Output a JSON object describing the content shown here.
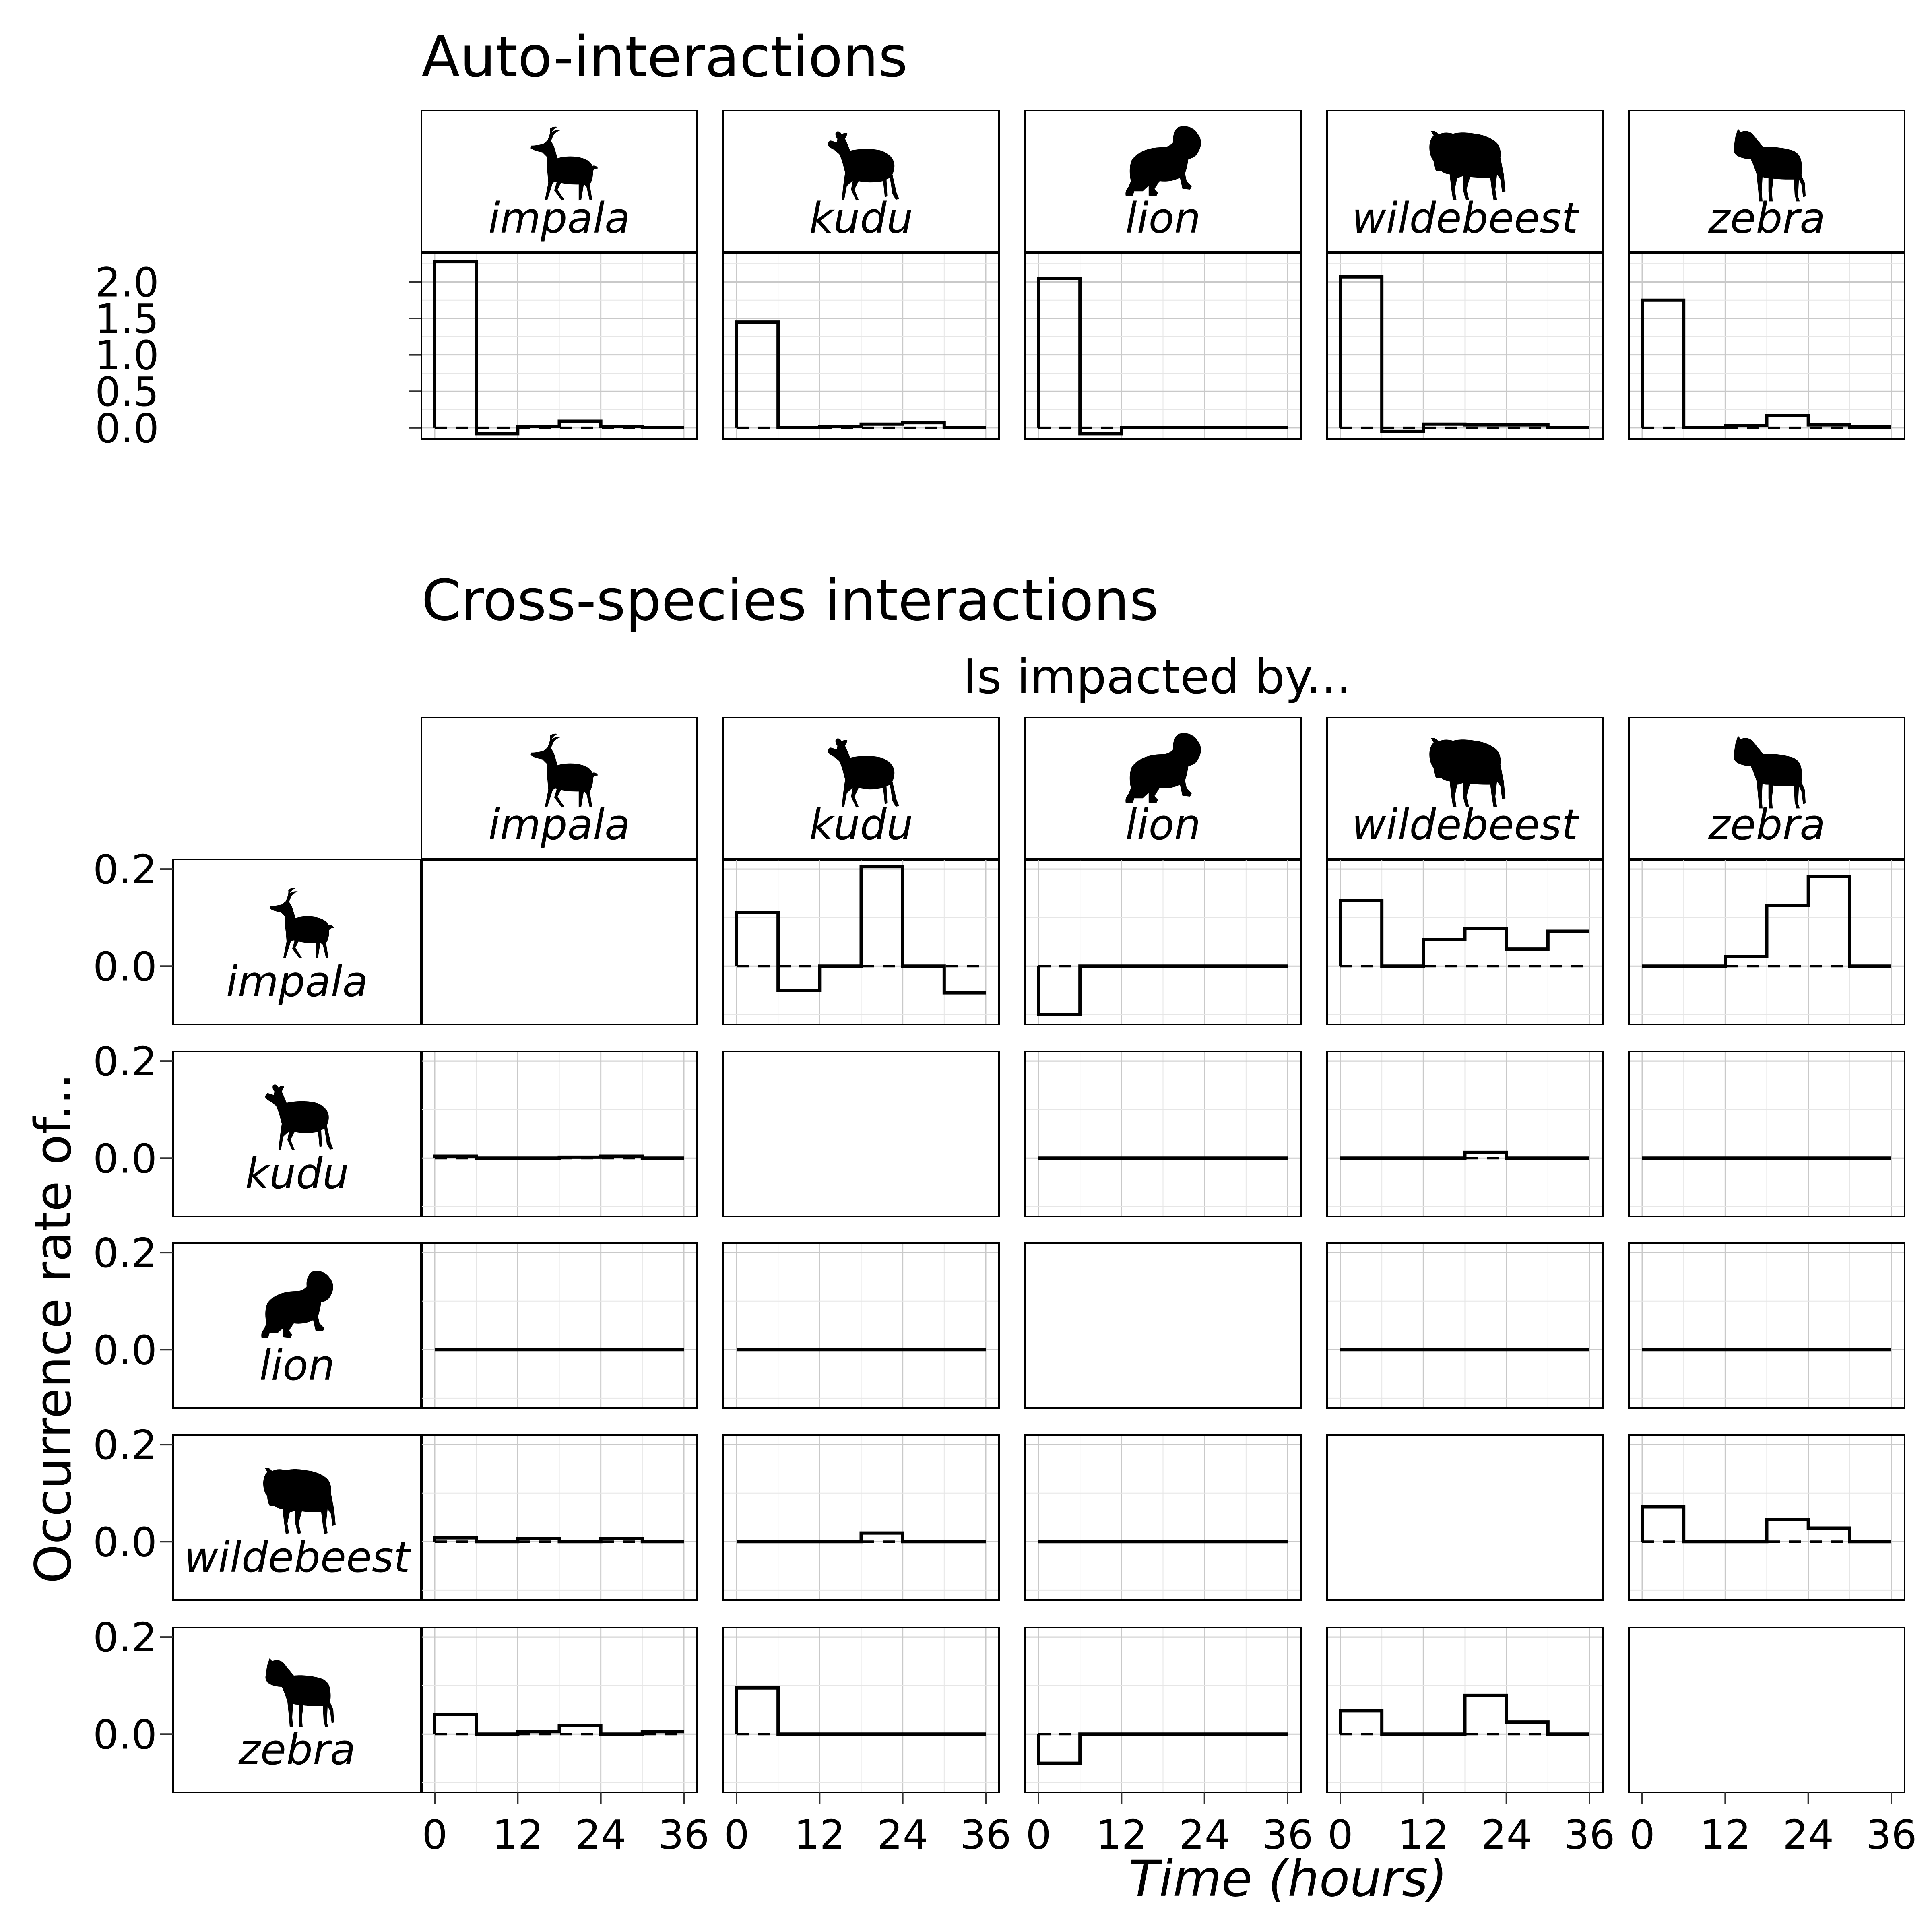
{
  "figure": {
    "auto_title": "Auto-interactions",
    "cross_title": "Cross-species interactions",
    "impacted_by_label": "Is impacted by...",
    "y_axis_label": "Occurrence rate of...",
    "x_axis_label": "Time (hours)"
  },
  "species": [
    "impala",
    "kudu",
    "lion",
    "wildebeest",
    "zebra"
  ],
  "chart_data": [
    {
      "type": "line",
      "panel_group": "auto",
      "step": "post",
      "title": "Auto-interactions",
      "xlabel": "Time (hours)",
      "ylabel": "",
      "x_bin_edges_hours": [
        0,
        6,
        12,
        18,
        24,
        30,
        36
      ],
      "x_ticks": [
        0,
        12,
        24,
        36
      ],
      "ylim": [
        -0.15,
        2.4
      ],
      "y_ticks": [
        0.0,
        0.5,
        1.0,
        1.5,
        2.0
      ],
      "y_tick_labels": [
        "0.0",
        "0.5",
        "1.0",
        "1.5",
        "2.0"
      ],
      "reference_line": 0,
      "series": [
        {
          "name": "impala",
          "values": [
            2.28,
            -0.08,
            0.02,
            0.09,
            0.02,
            0.0
          ]
        },
        {
          "name": "kudu",
          "values": [
            1.45,
            0.0,
            0.02,
            0.05,
            0.07,
            0.0
          ]
        },
        {
          "name": "lion",
          "values": [
            2.05,
            -0.08,
            0.0,
            0.0,
            0.0,
            0.0
          ]
        },
        {
          "name": "wildebeest",
          "values": [
            2.07,
            -0.05,
            0.05,
            0.04,
            0.04,
            0.0
          ]
        },
        {
          "name": "zebra",
          "values": [
            1.75,
            0.0,
            0.03,
            0.17,
            0.04,
            0.01
          ]
        }
      ]
    },
    {
      "type": "line",
      "panel_group": "cross",
      "step": "post",
      "title": "Cross-species interactions",
      "xlabel": "Time (hours)",
      "ylabel": "Occurrence rate of...",
      "column_label": "Is impacted by...",
      "x_bin_edges_hours": [
        0,
        6,
        12,
        18,
        24,
        30,
        36
      ],
      "x_ticks": [
        0,
        12,
        24,
        36
      ],
      "x_tick_labels": [
        "0",
        "12",
        "24",
        "36"
      ],
      "ylim": [
        -0.12,
        0.22
      ],
      "y_ticks": [
        0.0,
        0.2
      ],
      "y_tick_labels": [
        "0.0",
        "0.2"
      ],
      "reference_line": 0,
      "rows": [
        "impala",
        "kudu",
        "lion",
        "wildebeest",
        "zebra"
      ],
      "columns": [
        "impala",
        "kudu",
        "lion",
        "wildebeest",
        "zebra"
      ],
      "cells": [
        {
          "row": "impala",
          "col": "impala",
          "values": null
        },
        {
          "row": "impala",
          "col": "kudu",
          "values": [
            0.11,
            -0.05,
            0.0,
            0.205,
            0.0,
            -0.055
          ]
        },
        {
          "row": "impala",
          "col": "lion",
          "values": [
            -0.1,
            0.0,
            0.0,
            0.0,
            0.0,
            0.0
          ]
        },
        {
          "row": "impala",
          "col": "wildebeest",
          "values": [
            0.135,
            0.0,
            0.055,
            0.078,
            0.035,
            0.072
          ]
        },
        {
          "row": "impala",
          "col": "zebra",
          "values": [
            0.0,
            0.0,
            0.02,
            0.125,
            0.185,
            0.0
          ]
        },
        {
          "row": "kudu",
          "col": "impala",
          "values": [
            0.004,
            0.0,
            0.0,
            0.002,
            0.004,
            0.0
          ]
        },
        {
          "row": "kudu",
          "col": "kudu",
          "values": null
        },
        {
          "row": "kudu",
          "col": "lion",
          "values": [
            0.0,
            0.0,
            0.0,
            0.0,
            0.0,
            0.0
          ]
        },
        {
          "row": "kudu",
          "col": "wildebeest",
          "values": [
            0.0,
            0.0,
            0.0,
            0.012,
            0.0,
            0.0
          ]
        },
        {
          "row": "kudu",
          "col": "zebra",
          "values": [
            0.0,
            0.0,
            0.0,
            0.0,
            0.0,
            0.0
          ]
        },
        {
          "row": "lion",
          "col": "impala",
          "values": [
            0.0,
            0.0,
            0.0,
            0.0,
            0.0,
            0.0
          ]
        },
        {
          "row": "lion",
          "col": "kudu",
          "values": [
            0.0,
            0.0,
            0.0,
            0.0,
            0.0,
            0.0
          ]
        },
        {
          "row": "lion",
          "col": "lion",
          "values": null
        },
        {
          "row": "lion",
          "col": "wildebeest",
          "values": [
            0.0,
            0.0,
            0.0,
            0.0,
            0.0,
            0.0
          ]
        },
        {
          "row": "lion",
          "col": "zebra",
          "values": [
            0.0,
            0.0,
            0.0,
            0.0,
            0.0,
            0.0
          ]
        },
        {
          "row": "wildebeest",
          "col": "impala",
          "values": [
            0.008,
            0.0,
            0.006,
            0.0,
            0.006,
            0.0
          ]
        },
        {
          "row": "wildebeest",
          "col": "kudu",
          "values": [
            0.0,
            0.0,
            0.0,
            0.018,
            0.0,
            0.0
          ]
        },
        {
          "row": "wildebeest",
          "col": "lion",
          "values": [
            0.0,
            0.0,
            0.0,
            0.0,
            0.0,
            0.0
          ]
        },
        {
          "row": "wildebeest",
          "col": "wildebeest",
          "values": null
        },
        {
          "row": "wildebeest",
          "col": "zebra",
          "values": [
            0.072,
            0.0,
            0.0,
            0.045,
            0.028,
            0.0
          ]
        },
        {
          "row": "zebra",
          "col": "impala",
          "values": [
            0.04,
            0.0,
            0.005,
            0.018,
            0.0,
            0.005
          ]
        },
        {
          "row": "zebra",
          "col": "kudu",
          "values": [
            0.095,
            0.0,
            0.0,
            0.0,
            0.0,
            0.0
          ]
        },
        {
          "row": "zebra",
          "col": "lion",
          "values": [
            -0.06,
            0.0,
            0.0,
            0.0,
            0.0,
            0.0
          ]
        },
        {
          "row": "zebra",
          "col": "wildebeest",
          "values": [
            0.048,
            0.0,
            0.0,
            0.08,
            0.025,
            0.0
          ]
        },
        {
          "row": "zebra",
          "col": "zebra",
          "values": null
        }
      ]
    }
  ]
}
